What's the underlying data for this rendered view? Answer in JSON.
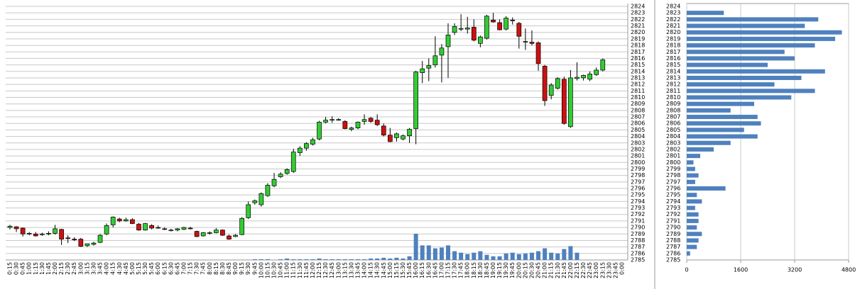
{
  "chart_data": [
    {
      "type": "candlestick",
      "categories": [
        "0:15",
        "0:30",
        "0:45",
        "1:00",
        "1:15",
        "1:30",
        "1:45",
        "2:00",
        "2:15",
        "2:30",
        "2:45",
        "3:00",
        "3:15",
        "3:30",
        "3:45",
        "4:00",
        "4:15",
        "4:30",
        "4:45",
        "5:00",
        "5:15",
        "5:30",
        "5:45",
        "6:00",
        "6:15",
        "6:30",
        "6:45",
        "7:00",
        "7:15",
        "7:30",
        "7:45",
        "8:00",
        "8:15",
        "8:30",
        "8:45",
        "9:00",
        "9:15",
        "9:30",
        "9:45",
        "10:00",
        "10:15",
        "10:30",
        "10:45",
        "11:00",
        "11:15",
        "11:30",
        "11:45",
        "12:00",
        "12:15",
        "12:30",
        "12:45",
        "13:00",
        "13:15",
        "13:30",
        "13:45",
        "14:00",
        "14:15",
        "14:30",
        "14:45",
        "15:00",
        "15:15",
        "15:30",
        "15:45",
        "16:00",
        "16:15",
        "16:30",
        "16:45",
        "17:00",
        "17:15",
        "17:30",
        "17:45",
        "18:00",
        "18:15",
        "18:30",
        "18:45",
        "19:00",
        "19:15",
        "19:30",
        "19:45",
        "20:00",
        "20:15",
        "20:30",
        "20:45",
        "21:00",
        "21:15",
        "21:30",
        "21:45",
        "22:00",
        "22:15",
        "22:30",
        "22:45",
        "23:00",
        "23:15",
        "23:30",
        "23:45",
        "0:00"
      ],
      "open": [
        2790.0,
        2790.1,
        2789.9,
        2789.0,
        2789.0,
        2788.9,
        2789.0,
        2789.1,
        2789.7,
        2788.4,
        2788.2,
        2788.2,
        2787.2,
        2787.4,
        2787.7,
        2789.0,
        2790.4,
        2791.3,
        2791.0,
        2791.2,
        2790.5,
        2789.6,
        2790.3,
        2790.0,
        2789.8,
        2789.6,
        2789.6,
        2789.7,
        2789.9,
        2789.4,
        2788.7,
        2789.1,
        2789.2,
        2789.6,
        2788.7,
        2788.6,
        2788.9,
        2791.5,
        2793.8,
        2793.5,
        2794.9,
        2796.4,
        2797.8,
        2798.3,
        2798.6,
        2801.5,
        2802.2,
        2802.8,
        2803.6,
        2806.2,
        2806.5,
        2806.6,
        2806.3,
        2805.1,
        2805.3,
        2806.3,
        2806.8,
        2806.5,
        2805.6,
        2804.2,
        2803.8,
        2803.6,
        2804.1,
        2805.2,
        2813.8,
        2814.5,
        2815.0,
        2816.5,
        2817.8,
        2820.0,
        2820.5,
        2820.5,
        2820.8,
        2818.3,
        2819.1,
        2821.9,
        2821.5,
        2820.5,
        2821.9,
        2821.4,
        2818.6,
        2818.5,
        2818.4,
        2814.8,
        2810.3,
        2811.4,
        2812.8,
        2805.5,
        2812.9,
        2813.0,
        2812.8,
        2813.5,
        2814.2,
        null,
        null,
        null
      ],
      "high": [
        2790.4,
        2790.2,
        2790.0,
        2789.3,
        2789.3,
        2789.2,
        2789.4,
        2790.4,
        2789.8,
        2788.8,
        2788.5,
        2788.4,
        2787.5,
        2787.8,
        2789.0,
        2790.6,
        2791.7,
        2791.5,
        2791.5,
        2791.4,
        2790.7,
        2790.7,
        2790.5,
        2790.3,
        2790.0,
        2789.8,
        2789.9,
        2790.1,
        2790.1,
        2789.5,
        2789.3,
        2789.4,
        2789.9,
        2789.7,
        2788.9,
        2789.0,
        2791.6,
        2794.0,
        2794.3,
        2795.4,
        2796.8,
        2798.4,
        2798.5,
        2799.1,
        2802.1,
        2802.5,
        2803.1,
        2803.8,
        2806.4,
        2807.0,
        2807.1,
        2806.8,
        2806.5,
        2805.5,
        2806.3,
        2807.4,
        2807.0,
        2807.4,
        2806.0,
        2805.3,
        2804.6,
        2804.3,
        2805.3,
        2814.1,
        2815.6,
        2816.0,
        2819.4,
        2818.2,
        2821.4,
        2821.4,
        2822.8,
        2822.4,
        2822.0,
        2819.5,
        2822.7,
        2823.0,
        2822.0,
        2822.5,
        2822.3,
        2821.6,
        2820.6,
        2820.3,
        2818.6,
        2815.0,
        2812.2,
        2813.1,
        2813.2,
        2814.2,
        2815.4,
        2813.5,
        2814.0,
        2814.6,
        2816.0,
        null,
        null,
        null
      ],
      "low": [
        2789.7,
        2789.3,
        2788.6,
        2788.8,
        2788.6,
        2788.7,
        2788.8,
        2788.9,
        2787.3,
        2787.6,
        2787.9,
        2787.0,
        2787.0,
        2787.2,
        2787.6,
        2788.8,
        2790.0,
        2790.8,
        2790.9,
        2790.5,
        2789.5,
        2789.5,
        2789.7,
        2789.8,
        2789.6,
        2789.4,
        2789.4,
        2789.6,
        2789.7,
        2788.5,
        2788.6,
        2788.9,
        2789.1,
        2788.7,
        2788.1,
        2788.5,
        2788.8,
        2791.3,
        2793.5,
        2793.2,
        2794.7,
        2796.2,
        2797.6,
        2798.1,
        2798.4,
        2801.0,
        2801.8,
        2802.6,
        2803.4,
        2806.0,
        2806.1,
        2806.4,
        2805.1,
        2804.8,
        2805.1,
        2805.8,
        2806.1,
        2805.6,
        2804.0,
        2803.1,
        2803.2,
        2803.4,
        2803.0,
        2802.8,
        2812.2,
        2812.5,
        2814.6,
        2812.3,
        2813.0,
        2819.6,
        2820.2,
        2819.8,
        2818.6,
        2817.7,
        2818.9,
        2821.5,
        2820.3,
        2820.3,
        2821.2,
        2817.5,
        2817.3,
        2818.0,
        2814.1,
        2808.7,
        2809.7,
        2811.2,
        2805.8,
        2805.3,
        2812.6,
        2812.6,
        2812.5,
        2813.3,
        2814.0,
        null,
        null,
        null
      ],
      "close": [
        2790.2,
        2789.8,
        2789.0,
        2789.1,
        2788.7,
        2789.0,
        2789.1,
        2789.8,
        2788.2,
        2788.3,
        2788.1,
        2787.1,
        2787.5,
        2787.6,
        2788.8,
        2790.3,
        2791.6,
        2791.0,
        2791.2,
        2790.6,
        2789.6,
        2790.6,
        2789.9,
        2789.9,
        2789.7,
        2789.6,
        2789.8,
        2790.0,
        2789.8,
        2788.6,
        2789.2,
        2789.2,
        2789.6,
        2788.8,
        2788.2,
        2788.8,
        2791.4,
        2793.5,
        2794.1,
        2795.2,
        2796.5,
        2797.4,
        2798.2,
        2798.9,
        2801.6,
        2802.2,
        2802.9,
        2803.5,
        2806.2,
        2806.5,
        2806.6,
        2806.6,
        2805.2,
        2805.3,
        2806.2,
        2806.6,
        2806.3,
        2805.8,
        2804.2,
        2803.2,
        2804.4,
        2804.1,
        2805.1,
        2813.9,
        2814.4,
        2814.9,
        2816.4,
        2817.6,
        2819.6,
        2820.9,
        2820.6,
        2820.7,
        2818.8,
        2819.3,
        2822.5,
        2821.6,
        2820.4,
        2822.2,
        2821.8,
        2819.4,
        2818.6,
        2818.3,
        2815.2,
        2809.5,
        2811.9,
        2812.9,
        2806.0,
        2813.0,
        2813.1,
        2813.4,
        2813.6,
        2814.2,
        2815.8,
        null,
        null,
        null
      ],
      "volume": [
        0,
        0,
        0,
        0,
        0,
        0,
        0,
        0,
        0,
        0,
        0,
        0,
        0,
        0,
        0,
        0,
        0,
        0,
        0,
        0,
        0,
        0,
        0,
        0,
        0,
        0,
        0,
        0,
        0,
        0,
        0,
        0,
        0,
        0,
        0,
        0,
        0,
        0,
        1,
        1,
        1,
        0,
        1,
        2,
        1,
        1,
        1,
        1,
        2,
        1,
        1,
        1,
        1,
        1,
        1,
        1,
        2,
        2,
        3,
        2,
        3,
        2,
        5,
        36,
        20,
        20,
        16,
        17,
        20,
        12,
        10,
        8,
        10,
        12,
        7,
        5,
        5,
        9,
        10,
        8,
        9,
        10,
        12,
        16,
        10,
        9,
        15,
        19,
        10,
        0,
        0,
        0,
        0,
        null,
        null,
        null
      ],
      "up_color": "#33cc33",
      "down_color": "#cc1111",
      "volume_color": "#4f81bd",
      "grid": true,
      "ylim": [
        2785,
        2824
      ],
      "yticks": [
        2785,
        2786,
        2787,
        2788,
        2789,
        2790,
        2791,
        2792,
        2793,
        2794,
        2795,
        2796,
        2797,
        2798,
        2799,
        2800,
        2801,
        2802,
        2803,
        2804,
        2805,
        2806,
        2807,
        2808,
        2809,
        2810,
        2811,
        2812,
        2813,
        2814,
        2815,
        2816,
        2817,
        2818,
        2819,
        2820,
        2821,
        2822,
        2823,
        2824
      ]
    },
    {
      "type": "barh",
      "y": [
        2785,
        2786,
        2787,
        2788,
        2789,
        2790,
        2791,
        2792,
        2793,
        2794,
        2795,
        2796,
        2797,
        2798,
        2799,
        2800,
        2801,
        2802,
        2803,
        2804,
        2805,
        2806,
        2807,
        2808,
        2809,
        2810,
        2811,
        2812,
        2813,
        2814,
        2815,
        2816,
        2817,
        2818,
        2819,
        2820,
        2821,
        2822,
        2823,
        2824
      ],
      "values": [
        0,
        100,
        300,
        350,
        450,
        300,
        350,
        350,
        250,
        450,
        300,
        1150,
        250,
        350,
        250,
        200,
        400,
        800,
        1300,
        2100,
        1700,
        2200,
        2100,
        1300,
        2000,
        3100,
        3800,
        2600,
        3400,
        4100,
        2400,
        3200,
        2900,
        3800,
        4400,
        4600,
        3500,
        3900,
        1100,
        0
      ],
      "color": "#4f81bd",
      "grid": true,
      "ylim": [
        2785,
        2824
      ],
      "yticks": [
        2785,
        2786,
        2787,
        2788,
        2789,
        2790,
        2791,
        2792,
        2793,
        2794,
        2795,
        2796,
        2797,
        2798,
        2799,
        2800,
        2801,
        2802,
        2803,
        2804,
        2805,
        2806,
        2807,
        2808,
        2809,
        2810,
        2811,
        2812,
        2813,
        2814,
        2815,
        2816,
        2817,
        2818,
        2819,
        2820,
        2821,
        2822,
        2823,
        2824
      ],
      "xlim": [
        0,
        4800
      ],
      "xticks": [
        0,
        1600,
        3200,
        4800
      ]
    }
  ]
}
